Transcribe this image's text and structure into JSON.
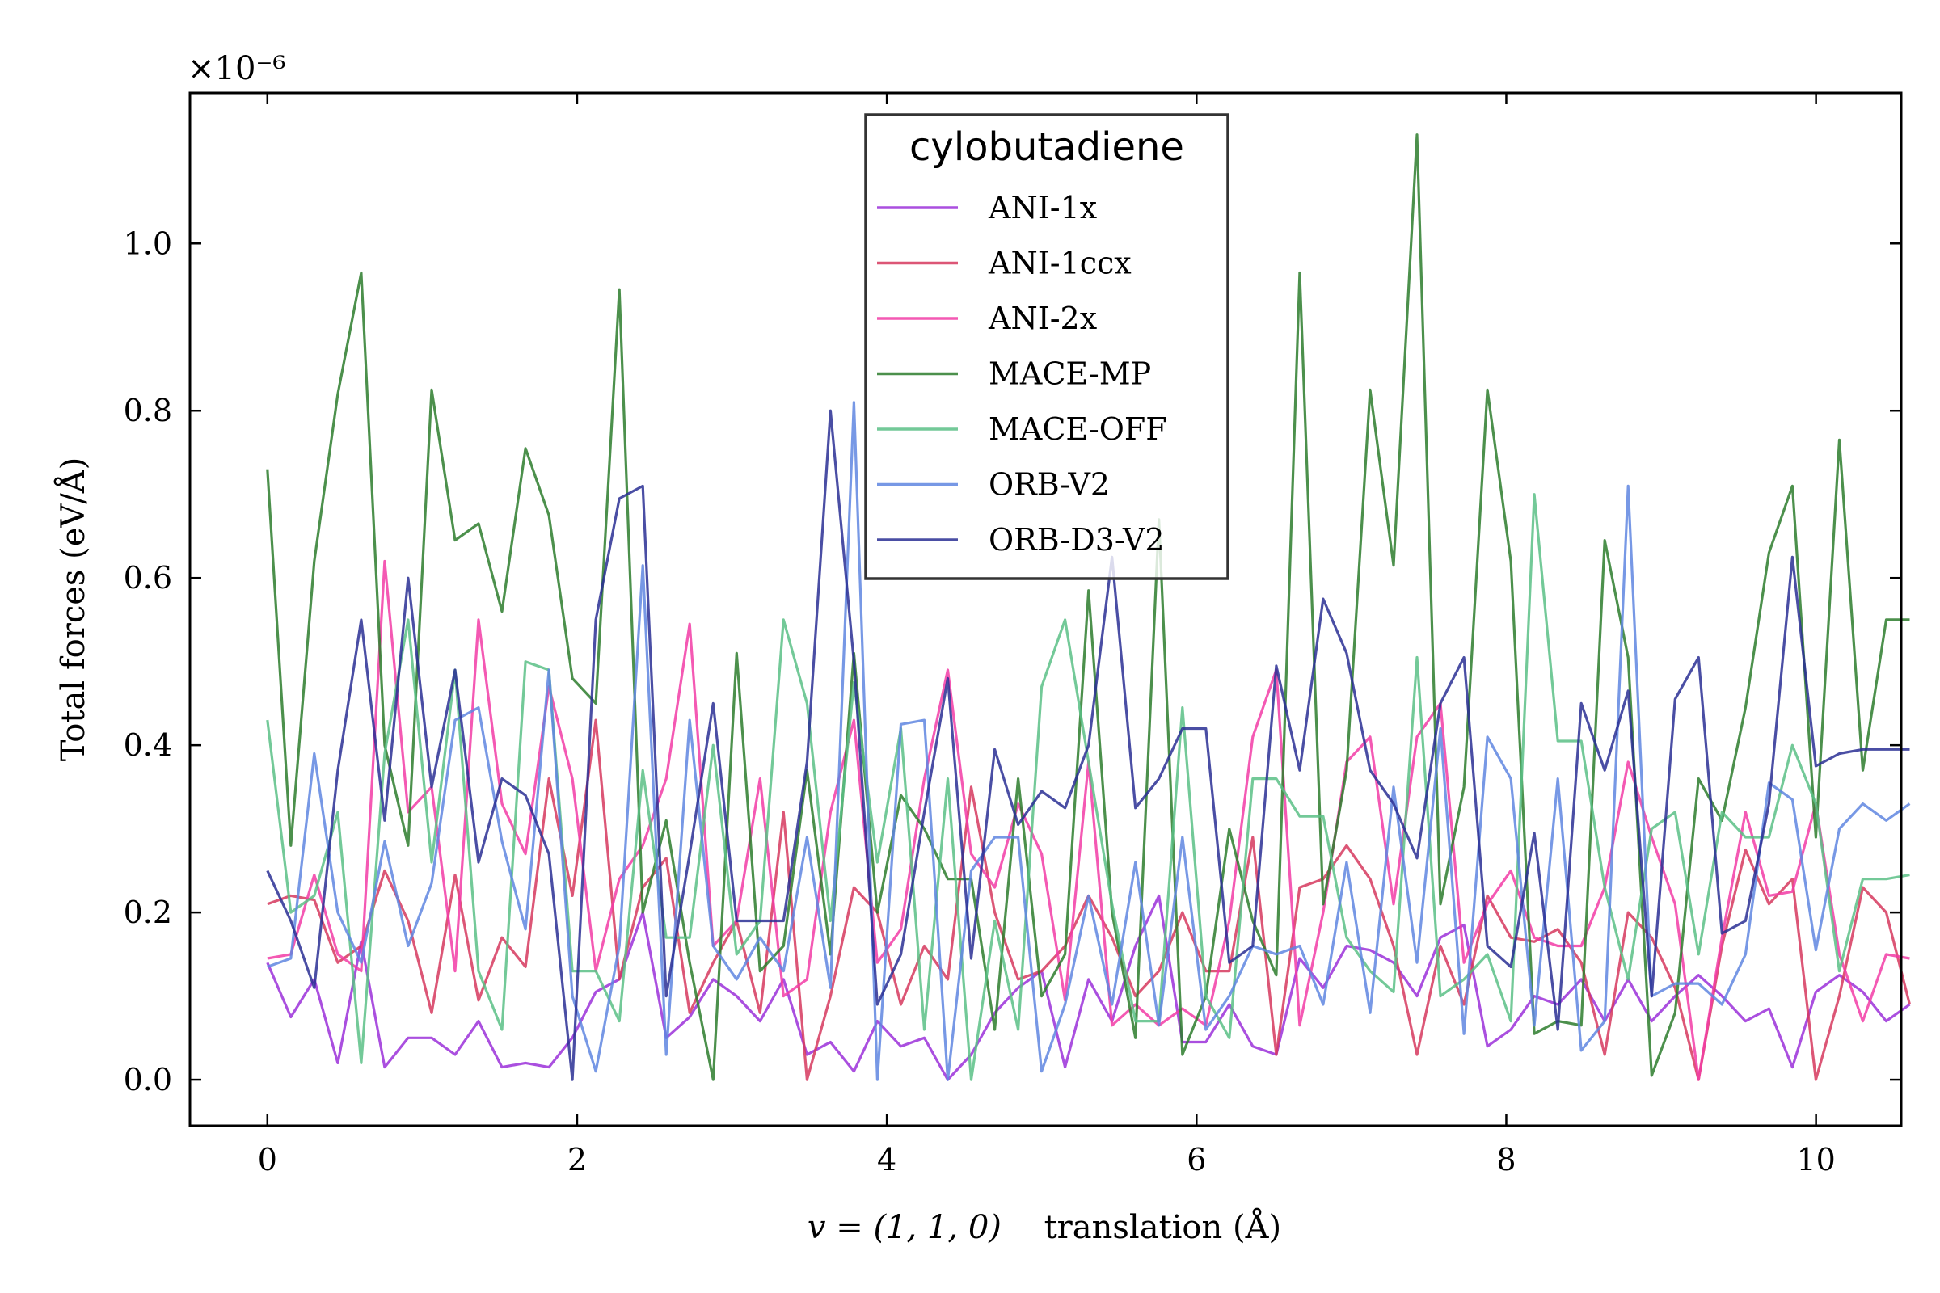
{
  "chart_data": {
    "type": "line",
    "title": "",
    "xlabel_math": "v = (1, 1, 0)",
    "xlabel_text": "translation (Å)",
    "ylabel": "Total forces   (eV/Å)",
    "y_offset_label": "×10⁻⁶",
    "xlim": [
      -0.5,
      10.55
    ],
    "ylim": [
      -0.055,
      1.18
    ],
    "x_ticks": [
      0,
      2,
      4,
      6,
      8,
      10
    ],
    "x_tick_labels": [
      "0",
      "2",
      "4",
      "6",
      "8",
      "10"
    ],
    "y_ticks": [
      0.0,
      0.2,
      0.4,
      0.6,
      0.8,
      1.0
    ],
    "y_tick_labels": [
      "0.0",
      "0.2",
      "0.4",
      "0.6",
      "0.8",
      "1.0"
    ],
    "grid": false,
    "legend": {
      "title": "cylobutadiene",
      "position": "upper-center"
    },
    "x_start": 0.0,
    "x_step": 0.1515,
    "series": [
      {
        "name": "ANI-1x",
        "color": "#9b30d9",
        "values": [
          0.14,
          0.075,
          0.12,
          0.02,
          0.165,
          0.015,
          0.05,
          0.05,
          0.03,
          0.07,
          0.015,
          0.02,
          0.015,
          0.05,
          0.105,
          0.12,
          0.2,
          0.05,
          0.075,
          0.12,
          0.1,
          0.07,
          0.12,
          0.03,
          0.045,
          0.01,
          0.07,
          0.04,
          0.05,
          0.0,
          0.03,
          0.08,
          0.11,
          0.13,
          0.015,
          0.12,
          0.07,
          0.16,
          0.22,
          0.045,
          0.045,
          0.09,
          0.04,
          0.03,
          0.145,
          0.11,
          0.16,
          0.155,
          0.14,
          0.1,
          0.17,
          0.185,
          0.04,
          0.06,
          0.1,
          0.09,
          0.12,
          0.07,
          0.12,
          0.07,
          0.1,
          0.125,
          0.1,
          0.07,
          0.085,
          0.015,
          0.105,
          0.125,
          0.105,
          0.07,
          0.09
        ]
      },
      {
        "name": "ANI-1ccx",
        "color": "#d6385e",
        "values": [
          0.21,
          0.22,
          0.215,
          0.14,
          0.16,
          0.25,
          0.19,
          0.08,
          0.245,
          0.095,
          0.17,
          0.135,
          0.36,
          0.22,
          0.43,
          0.12,
          0.23,
          0.265,
          0.08,
          0.14,
          0.19,
          0.08,
          0.32,
          0.0,
          0.1,
          0.23,
          0.2,
          0.09,
          0.16,
          0.12,
          0.35,
          0.2,
          0.12,
          0.13,
          0.16,
          0.22,
          0.17,
          0.1,
          0.13,
          0.2,
          0.13,
          0.13,
          0.29,
          0.03,
          0.23,
          0.24,
          0.28,
          0.24,
          0.16,
          0.03,
          0.16,
          0.09,
          0.22,
          0.17,
          0.165,
          0.18,
          0.14,
          0.03,
          0.2,
          0.17,
          0.11,
          0.0,
          0.16,
          0.275,
          0.21,
          0.24,
          0.0,
          0.1,
          0.23,
          0.2,
          0.09
        ]
      },
      {
        "name": "ANI-2x",
        "color": "#f23ca6",
        "values": [
          0.145,
          0.15,
          0.245,
          0.15,
          0.13,
          0.62,
          0.32,
          0.35,
          0.13,
          0.55,
          0.33,
          0.27,
          0.47,
          0.36,
          0.13,
          0.24,
          0.28,
          0.36,
          0.545,
          0.16,
          0.19,
          0.36,
          0.1,
          0.12,
          0.32,
          0.43,
          0.14,
          0.18,
          0.36,
          0.49,
          0.27,
          0.23,
          0.33,
          0.27,
          0.095,
          0.38,
          0.065,
          0.09,
          0.065,
          0.085,
          0.065,
          0.19,
          0.41,
          0.49,
          0.065,
          0.2,
          0.38,
          0.41,
          0.21,
          0.41,
          0.45,
          0.14,
          0.21,
          0.25,
          0.17,
          0.16,
          0.16,
          0.23,
          0.38,
          0.29,
          0.21,
          0.0,
          0.17,
          0.32,
          0.22,
          0.225,
          0.33,
          0.15,
          0.07,
          0.15,
          0.145
        ]
      },
      {
        "name": "MACE-MP",
        "color": "#2d7d2d",
        "values": [
          0.73,
          0.28,
          0.62,
          0.82,
          0.965,
          0.4,
          0.28,
          0.825,
          0.645,
          0.665,
          0.56,
          0.755,
          0.675,
          0.48,
          0.45,
          0.945,
          0.2,
          0.31,
          0.14,
          0.0,
          0.51,
          0.13,
          0.16,
          0.37,
          0.15,
          0.51,
          0.2,
          0.34,
          0.3,
          0.24,
          0.24,
          0.06,
          0.36,
          0.1,
          0.15,
          0.585,
          0.2,
          0.05,
          0.67,
          0.03,
          0.1,
          0.3,
          0.19,
          0.125,
          0.965,
          0.21,
          0.37,
          0.825,
          0.615,
          1.13,
          0.21,
          0.35,
          0.825,
          0.62,
          0.055,
          0.07,
          0.065,
          0.645,
          0.505,
          0.005,
          0.08,
          0.36,
          0.31,
          0.445,
          0.63,
          0.71,
          0.29,
          0.765,
          0.37,
          0.55,
          0.55
        ]
      },
      {
        "name": "MACE-OFF",
        "color": "#5bbf86",
        "values": [
          0.43,
          0.2,
          0.22,
          0.32,
          0.02,
          0.39,
          0.55,
          0.26,
          0.49,
          0.13,
          0.06,
          0.5,
          0.49,
          0.13,
          0.13,
          0.07,
          0.37,
          0.17,
          0.17,
          0.4,
          0.15,
          0.19,
          0.55,
          0.45,
          0.19,
          0.475,
          0.26,
          0.42,
          0.06,
          0.36,
          0.0,
          0.19,
          0.06,
          0.47,
          0.55,
          0.38,
          0.21,
          0.07,
          0.07,
          0.445,
          0.1,
          0.05,
          0.36,
          0.36,
          0.315,
          0.315,
          0.17,
          0.13,
          0.105,
          0.505,
          0.1,
          0.12,
          0.15,
          0.07,
          0.7,
          0.405,
          0.405,
          0.23,
          0.12,
          0.3,
          0.32,
          0.15,
          0.32,
          0.29,
          0.29,
          0.4,
          0.33,
          0.13,
          0.24,
          0.24,
          0.245
        ]
      },
      {
        "name": "ORB-V2",
        "color": "#5f86e0",
        "values": [
          0.135,
          0.145,
          0.39,
          0.2,
          0.14,
          0.285,
          0.16,
          0.235,
          0.43,
          0.445,
          0.285,
          0.18,
          0.49,
          0.1,
          0.01,
          0.16,
          0.615,
          0.03,
          0.43,
          0.16,
          0.12,
          0.17,
          0.13,
          0.29,
          0.11,
          0.81,
          0.0,
          0.425,
          0.43,
          0.0,
          0.25,
          0.29,
          0.29,
          0.01,
          0.09,
          0.22,
          0.09,
          0.26,
          0.065,
          0.29,
          0.06,
          0.1,
          0.16,
          0.15,
          0.16,
          0.09,
          0.26,
          0.08,
          0.35,
          0.14,
          0.42,
          0.055,
          0.41,
          0.36,
          0.065,
          0.36,
          0.035,
          0.07,
          0.71,
          0.1,
          0.115,
          0.115,
          0.09,
          0.15,
          0.355,
          0.335,
          0.155,
          0.3,
          0.33,
          0.31,
          0.33
        ]
      },
      {
        "name": "ORB-D3-V2",
        "color": "#2a2f94",
        "values": [
          0.25,
          0.19,
          0.11,
          0.37,
          0.55,
          0.31,
          0.6,
          0.35,
          0.49,
          0.26,
          0.36,
          0.34,
          0.27,
          0.0,
          0.55,
          0.695,
          0.71,
          0.1,
          0.27,
          0.45,
          0.19,
          0.19,
          0.19,
          0.38,
          0.8,
          0.5,
          0.09,
          0.15,
          0.32,
          0.48,
          0.145,
          0.395,
          0.305,
          0.345,
          0.325,
          0.4,
          0.625,
          0.325,
          0.36,
          0.42,
          0.42,
          0.14,
          0.16,
          0.495,
          0.37,
          0.575,
          0.51,
          0.37,
          0.33,
          0.265,
          0.45,
          0.505,
          0.16,
          0.135,
          0.295,
          0.06,
          0.45,
          0.37,
          0.465,
          0.1,
          0.455,
          0.505,
          0.175,
          0.19,
          0.33,
          0.625,
          0.375,
          0.39,
          0.395,
          0.395,
          0.395
        ]
      }
    ]
  }
}
